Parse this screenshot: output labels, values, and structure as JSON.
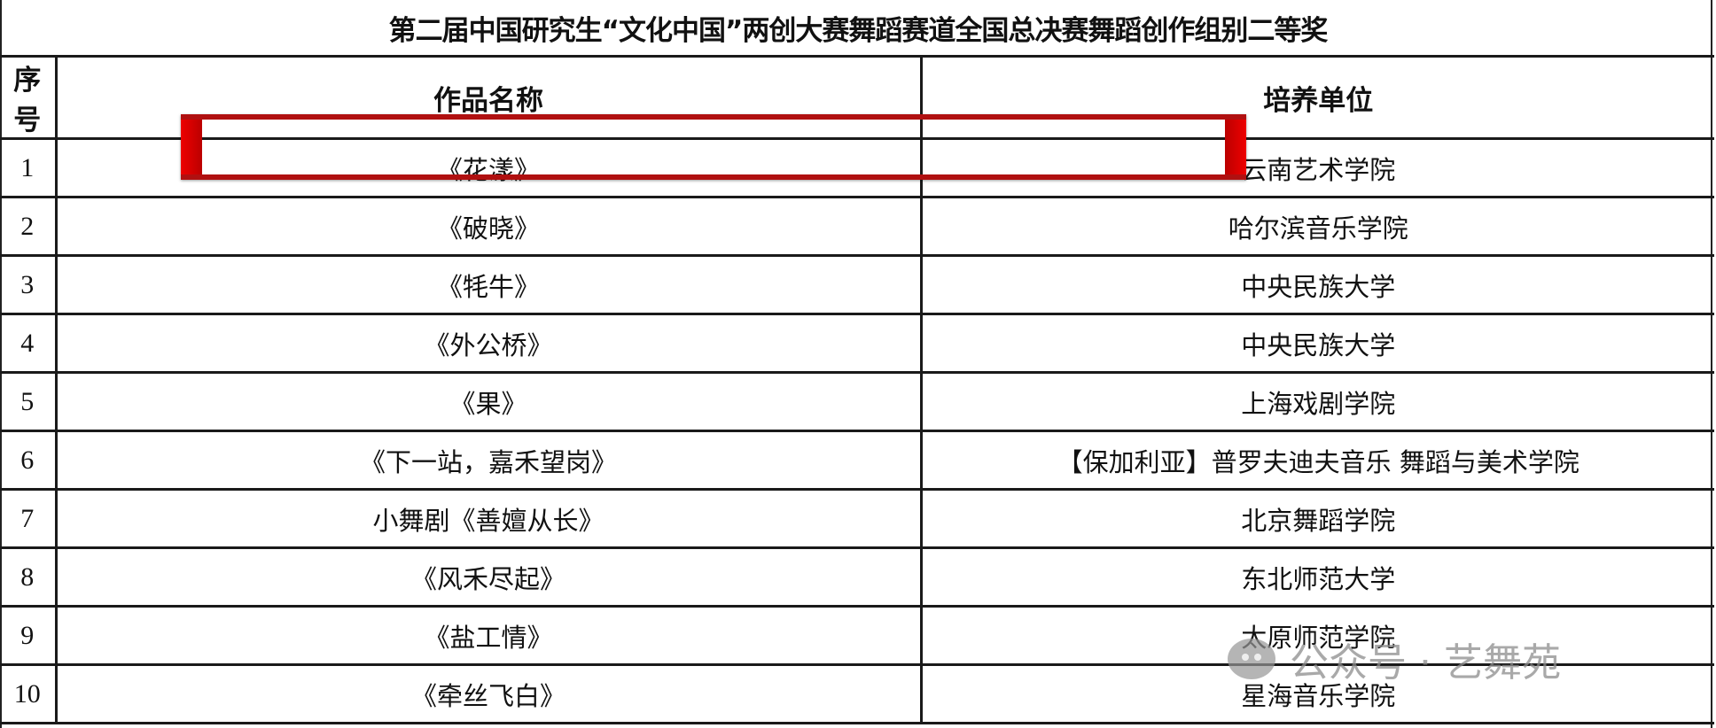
{
  "title": "第二届中国研究生“文化中国”两创大赛舞蹈赛道全国总决赛舞蹈创作组别二等奖",
  "headers": [
    "序号",
    "作品名称",
    "培养单位"
  ],
  "rows": [
    {
      "no": "1",
      "work": "《花漾》",
      "unit": "云南艺术学院"
    },
    {
      "no": "2",
      "work": "《破晓》",
      "unit": "哈尔滨音乐学院"
    },
    {
      "no": "3",
      "work": "《牦牛》",
      "unit": "中央民族大学"
    },
    {
      "no": "4",
      "work": "《外公桥》",
      "unit": "中央民族大学"
    },
    {
      "no": "5",
      "work": "《果》",
      "unit": "上海戏剧学院"
    },
    {
      "no": "6",
      "work": "《下一站，嘉禾望岗》",
      "unit": "【保加利亚】普罗夫迪夫音乐 舞蹈与美术学院"
    },
    {
      "no": "7",
      "work": "小舞剧《善嬗从长》",
      "unit": "北京舞蹈学院"
    },
    {
      "no": "8",
      "work": "《风禾尽起》",
      "unit": "东北师范大学"
    },
    {
      "no": "9",
      "work": "《盐工情》",
      "unit": "太原师范学院"
    },
    {
      "no": "10",
      "work": "《牵丝飞白》",
      "unit": "星海音乐学院"
    }
  ],
  "highlight_color": "#cc0000",
  "watermark": {
    "icon": "wechat-icon",
    "text": "公众号 · 艺舞苑"
  }
}
